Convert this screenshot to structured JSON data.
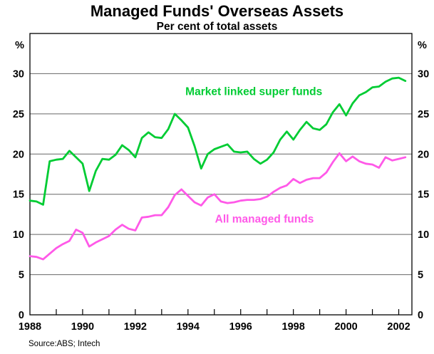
{
  "header": {
    "title": "Managed Funds' Overseas Assets",
    "subtitle": "Per cent of total assets"
  },
  "footer": {
    "source": "Source:ABS; Intech"
  },
  "chart_data": {
    "type": "line",
    "title": "Managed Funds' Overseas Assets",
    "subtitle": "Per cent of total assets",
    "unit_label": "%",
    "xlim": [
      1988,
      2002.5
    ],
    "ylim": [
      0,
      35
    ],
    "y_ticks": [
      0,
      5,
      10,
      15,
      20,
      25,
      30
    ],
    "x_tick_years": [
      1989,
      1990,
      1991,
      1992,
      1993,
      1994,
      1995,
      1996,
      1997,
      1998,
      1999,
      2000,
      2001,
      2002
    ],
    "x_label_years": [
      1988,
      1990,
      1992,
      1994,
      1996,
      1998,
      2000,
      2002
    ],
    "grid": "horizontal",
    "grid_color": "#666666",
    "axis_color": "#000000",
    "x": [
      1988.0,
      1988.25,
      1988.5,
      1988.75,
      1989.0,
      1989.25,
      1989.5,
      1989.75,
      1990.0,
      1990.25,
      1990.5,
      1990.75,
      1991.0,
      1991.25,
      1991.5,
      1991.75,
      1992.0,
      1992.25,
      1992.5,
      1992.75,
      1993.0,
      1993.25,
      1993.5,
      1993.75,
      1994.0,
      1994.25,
      1994.5,
      1994.75,
      1995.0,
      1995.25,
      1995.5,
      1995.75,
      1996.0,
      1996.25,
      1996.5,
      1996.75,
      1997.0,
      1997.25,
      1997.5,
      1997.75,
      1998.0,
      1998.25,
      1998.5,
      1998.75,
      1999.0,
      1999.25,
      1999.5,
      1999.75,
      2000.0,
      2000.25,
      2000.5,
      2000.75,
      2001.0,
      2001.25,
      2001.5,
      2001.75,
      2002.0,
      2002.25
    ],
    "series": [
      {
        "name": "Market linked super funds",
        "color": "#00cc33",
        "label_at": {
          "x": 1996.5,
          "y": 27.8
        },
        "values": [
          14.2,
          14.1,
          13.7,
          19.1,
          19.3,
          19.4,
          20.4,
          19.6,
          18.8,
          15.4,
          17.9,
          19.4,
          19.3,
          19.9,
          21.1,
          20.5,
          19.6,
          22.0,
          22.7,
          22.1,
          22.0,
          23.1,
          25.0,
          24.2,
          23.3,
          21.0,
          18.2,
          20.0,
          20.6,
          20.9,
          21.2,
          20.3,
          20.2,
          20.3,
          19.4,
          18.8,
          19.3,
          20.2,
          21.8,
          22.8,
          21.8,
          23.0,
          24.0,
          23.2,
          23.0,
          23.7,
          25.2,
          26.2,
          24.8,
          26.3,
          27.3,
          27.7,
          28.3,
          28.4,
          29.0,
          29.4,
          29.5,
          29.1
        ]
      },
      {
        "name": "All managed funds",
        "color": "#ff59e8",
        "label_at": {
          "x": 1996.9,
          "y": 11.9
        },
        "values": [
          7.3,
          7.2,
          6.9,
          7.6,
          8.3,
          8.8,
          9.2,
          10.6,
          10.2,
          8.5,
          9.0,
          9.4,
          9.8,
          10.6,
          11.2,
          10.7,
          10.5,
          12.1,
          12.2,
          12.4,
          12.4,
          13.4,
          14.9,
          15.6,
          14.8,
          14.0,
          13.6,
          14.6,
          15.0,
          14.1,
          13.9,
          14.0,
          14.2,
          14.3,
          14.3,
          14.4,
          14.7,
          15.3,
          15.8,
          16.1,
          16.9,
          16.4,
          16.8,
          17.0,
          17.0,
          17.7,
          19.0,
          20.1,
          19.1,
          19.7,
          19.1,
          18.8,
          18.7,
          18.3,
          19.6,
          19.2,
          19.4,
          19.6
        ]
      }
    ],
    "source": "Source:ABS; Intech"
  }
}
